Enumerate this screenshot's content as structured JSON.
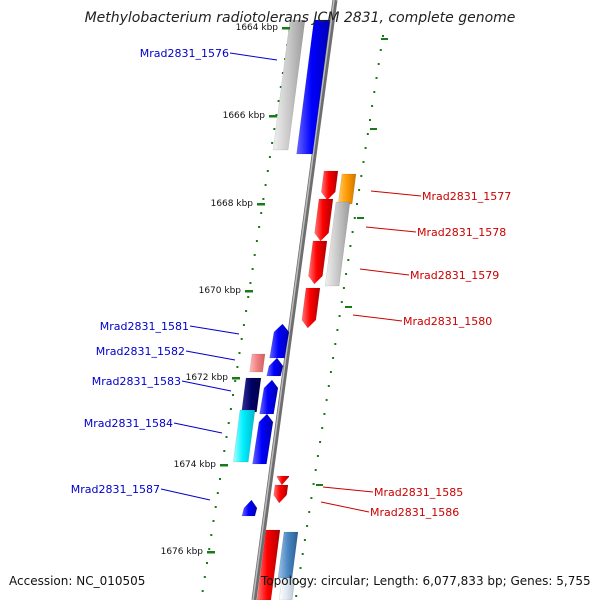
{
  "title": "Methylobacterium radiotolerans JCM 2831, complete genome",
  "footer": {
    "accession": "Accession: NC_010505",
    "topology": "Topology: circular; Length: 6,077,833 bp; Genes: 5,755"
  },
  "ticks": [
    "1664 kbp",
    "1666 kbp",
    "1668 kbp",
    "1670 kbp",
    "1672 kbp",
    "1674 kbp",
    "1676 kbp"
  ],
  "genes_left": [
    {
      "label": "Mrad2831_1576",
      "color": "#0000cc"
    },
    {
      "label": "Mrad2831_1581",
      "color": "#0000cc"
    },
    {
      "label": "Mrad2831_1582",
      "color": "#0000cc"
    },
    {
      "label": "Mrad2831_1583",
      "color": "#0000cc"
    },
    {
      "label": "Mrad2831_1584",
      "color": "#0000cc"
    },
    {
      "label": "Mrad2831_1587",
      "color": "#0000cc"
    }
  ],
  "genes_right": [
    {
      "label": "Mrad2831_1577",
      "color": "#cc0000"
    },
    {
      "label": "Mrad2831_1578",
      "color": "#cc0000"
    },
    {
      "label": "Mrad2831_1579",
      "color": "#cc0000"
    },
    {
      "label": "Mrad2831_1580",
      "color": "#cc0000"
    },
    {
      "label": "Mrad2831_1585",
      "color": "#cc0000"
    },
    {
      "label": "Mrad2831_1586",
      "color": "#cc0000"
    }
  ],
  "colors": {
    "forward": "#0000ff",
    "reverse": "#ff0000",
    "backbone": "#808080",
    "tick": "#1a7a1a"
  }
}
